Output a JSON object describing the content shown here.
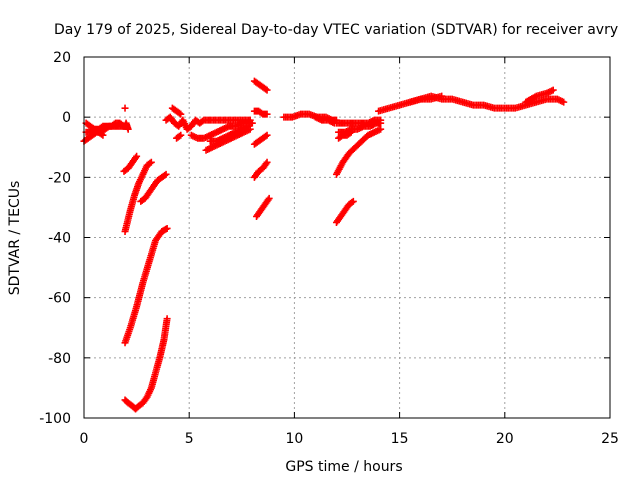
{
  "chart_data": {
    "type": "scatter",
    "title": "Day 179 of 2025, Sidereal Day-to-day VTEC variation (SDTVAR) for receiver avry",
    "xlabel": "GPS time / hours",
    "ylabel": "SDTVAR / TECUs",
    "xlim": [
      0,
      25
    ],
    "ylim": [
      -100,
      20
    ],
    "xticks": [
      0,
      5,
      10,
      15,
      20,
      25
    ],
    "yticks": [
      -100,
      -80,
      -60,
      -40,
      -20,
      0,
      20
    ],
    "grid": true,
    "marker": "+",
    "series_color": "#ff0000",
    "segments": [
      {
        "x": [
          0.0,
          0.2,
          0.4,
          0.6,
          0.8,
          1.0,
          1.2,
          1.4,
          1.6,
          1.8,
          1.9
        ],
        "y": [
          -8,
          -7,
          -6,
          -5,
          -5,
          -4,
          -3,
          -3,
          -3,
          -3,
          -3
        ]
      },
      {
        "x": [
          0.1,
          0.3,
          0.5,
          0.7,
          0.9,
          1.1,
          1.3,
          1.5,
          1.7,
          1.9
        ],
        "y": [
          -5,
          -5,
          -4,
          -4,
          -3,
          -3,
          -3,
          -2,
          -2,
          -3
        ]
      },
      {
        "x": [
          0.1,
          0.3,
          0.5,
          0.7,
          0.9
        ],
        "y": [
          -2,
          -3,
          -4,
          -5,
          -6
        ]
      },
      {
        "x": [
          1.9,
          1.95,
          2.0,
          2.05,
          2.1
        ],
        "y": [
          -3,
          -3,
          -2,
          -3,
          -4
        ]
      },
      {
        "x": [
          1.95
        ],
        "y": [
          3
        ]
      },
      {
        "x": [
          1.9,
          2.1,
          2.3,
          2.5
        ],
        "y": [
          -18,
          -17,
          -15,
          -13
        ]
      },
      {
        "x": [
          1.95,
          2.2,
          2.4,
          2.6,
          2.8,
          3.0,
          3.2
        ],
        "y": [
          -38,
          -31,
          -26,
          -22,
          -19,
          -16,
          -15
        ]
      },
      {
        "x": [
          1.95,
          2.2,
          2.5,
          2.8,
          3.1,
          3.4,
          3.7,
          3.95
        ],
        "y": [
          -75,
          -70,
          -63,
          -55,
          -48,
          -41,
          -38,
          -37
        ]
      },
      {
        "x": [
          2.7,
          2.9,
          3.1,
          3.3,
          3.5,
          3.7,
          3.9
        ],
        "y": [
          -28,
          -27,
          -25,
          -23,
          -21,
          -20,
          -19
        ]
      },
      {
        "x": [
          1.95,
          2.1,
          2.3,
          2.45,
          2.6,
          2.8,
          3.0,
          3.2,
          3.4,
          3.6,
          3.8,
          3.95
        ],
        "y": [
          -94,
          -95,
          -96,
          -97,
          -96,
          -95,
          -93,
          -90,
          -85,
          -80,
          -74,
          -67
        ]
      },
      {
        "x": [
          3.9,
          4.1,
          4.3,
          4.5,
          4.7,
          4.9,
          5.1,
          5.3,
          5.5,
          5.7,
          6.0,
          6.4,
          6.8,
          7.2,
          7.6,
          7.9
        ],
        "y": [
          -1,
          0,
          -2,
          -3,
          -1,
          -4,
          -3,
          -1,
          -2,
          -1,
          -1,
          -1,
          -1,
          -1,
          -1,
          -1
        ]
      },
      {
        "x": [
          4.2,
          4.4,
          4.6
        ],
        "y": [
          3,
          2,
          1
        ]
      },
      {
        "x": [
          4.4,
          4.6
        ],
        "y": [
          -7,
          -6
        ]
      },
      {
        "x": [
          5.1,
          5.4,
          5.7,
          6.0,
          6.3,
          6.6,
          6.9,
          7.2,
          7.5,
          7.8,
          8.0
        ],
        "y": [
          -6,
          -7,
          -7,
          -6,
          -5,
          -4,
          -3,
          -3,
          -2,
          -2,
          -2
        ]
      },
      {
        "x": [
          5.8,
          6.1,
          6.4,
          6.7,
          7.0,
          7.3,
          7.6,
          7.9
        ],
        "y": [
          -11,
          -10,
          -9,
          -8,
          -7,
          -6,
          -5,
          -4
        ]
      },
      {
        "x": [
          6.0,
          6.3,
          6.6,
          6.9,
          7.2,
          7.5,
          7.8
        ],
        "y": [
          -8,
          -8,
          -7,
          -6,
          -5,
          -4,
          -3
        ]
      },
      {
        "x": [
          7.95
        ],
        "y": [
          -2
        ]
      },
      {
        "x": [
          8.1,
          8.3,
          8.5,
          8.7
        ],
        "y": [
          12,
          11,
          10,
          9
        ]
      },
      {
        "x": [
          8.1,
          8.3,
          8.5,
          8.7
        ],
        "y": [
          2,
          2,
          1,
          1
        ]
      },
      {
        "x": [
          8.1,
          8.3,
          8.5,
          8.7
        ],
        "y": [
          -9,
          -8,
          -7,
          -6
        ]
      },
      {
        "x": [
          8.1,
          8.3,
          8.5,
          8.7
        ],
        "y": [
          -20,
          -18,
          -17,
          -15
        ]
      },
      {
        "x": [
          8.2,
          8.4,
          8.6,
          8.8
        ],
        "y": [
          -33,
          -31,
          -29,
          -27
        ]
      },
      {
        "x": [
          9.5,
          9.9,
          10.3,
          10.7,
          11.1,
          11.5,
          11.8,
          12.0
        ],
        "y": [
          0,
          0,
          1,
          1,
          0,
          0,
          -1,
          -1
        ]
      },
      {
        "x": [
          11.0,
          11.3,
          11.6,
          11.9
        ],
        "y": [
          0,
          -1,
          -1,
          -2
        ]
      },
      {
        "x": [
          12.0,
          12.3,
          12.6,
          12.9,
          13.2,
          13.5,
          13.8,
          14.1
        ],
        "y": [
          -2,
          -2,
          -2,
          -2,
          -2,
          -2,
          -1,
          -1
        ]
      },
      {
        "x": [
          12.1,
          12.4,
          12.7,
          13.0,
          13.3,
          13.6,
          13.9,
          14.1
        ],
        "y": [
          -5,
          -5,
          -4,
          -4,
          -3,
          -3,
          -2,
          -2
        ]
      },
      {
        "x": [
          12.1,
          12.3,
          12.5,
          12.7
        ],
        "y": [
          -7,
          -6,
          -6,
          -5
        ]
      },
      {
        "x": [
          12.0,
          12.3,
          12.6,
          12.9,
          13.2,
          13.5,
          13.8,
          14.1
        ],
        "y": [
          -19,
          -15,
          -12,
          -10,
          -8,
          -6,
          -5,
          -4
        ]
      },
      {
        "x": [
          12.0,
          12.2,
          12.4,
          12.6,
          12.8
        ],
        "y": [
          -35,
          -33,
          -31,
          -29,
          -28
        ]
      },
      {
        "x": [
          14.0,
          14.5,
          15.0,
          15.5,
          16.0,
          16.5,
          17.0,
          17.5,
          18.0,
          18.5,
          19.0,
          19.5,
          20.0,
          20.5,
          21.0,
          21.5,
          22.0,
          22.5,
          22.8
        ],
        "y": [
          2,
          3,
          4,
          5,
          6,
          7,
          6,
          6,
          5,
          4,
          4,
          3,
          3,
          3,
          4,
          5,
          6,
          6,
          5
        ]
      },
      {
        "x": [
          15.5,
          16.0,
          16.5,
          17.0
        ],
        "y": [
          5,
          6,
          6,
          7
        ]
      },
      {
        "x": [
          21.0,
          21.5,
          22.0,
          22.3
        ],
        "y": [
          5,
          7,
          8,
          9
        ]
      }
    ]
  }
}
